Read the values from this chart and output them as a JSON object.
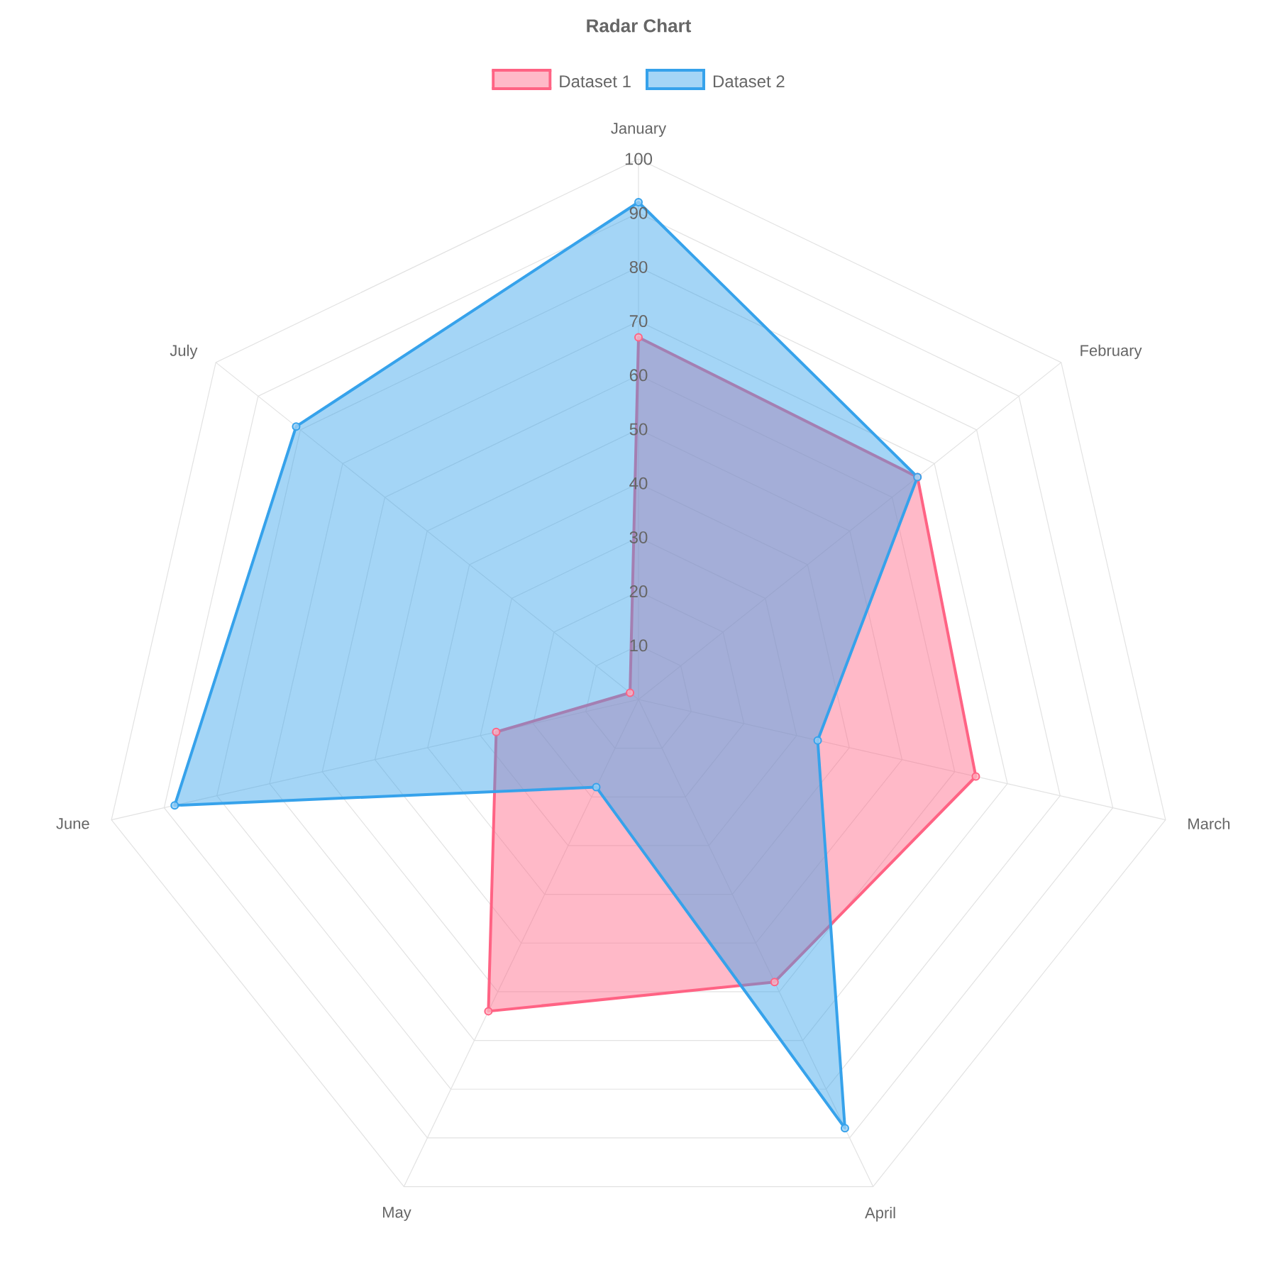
{
  "chart_data": {
    "type": "radar",
    "title": "Radar Chart",
    "categories": [
      "January",
      "February",
      "March",
      "April",
      "May",
      "June",
      "July"
    ],
    "series": [
      {
        "name": "Dataset 1",
        "color": "#ff6384",
        "values": [
          67,
          66,
          64,
          58,
          64,
          27,
          2
        ]
      },
      {
        "name": "Dataset 2",
        "color": "#36a2eb",
        "values": [
          92,
          66,
          34,
          88,
          18,
          88,
          81
        ]
      }
    ],
    "ylim": [
      0,
      100
    ],
    "yticks": [
      10,
      20,
      30,
      40,
      50,
      60,
      70,
      80,
      90,
      100
    ],
    "grid": true,
    "legend": "top",
    "marker": "circle"
  }
}
